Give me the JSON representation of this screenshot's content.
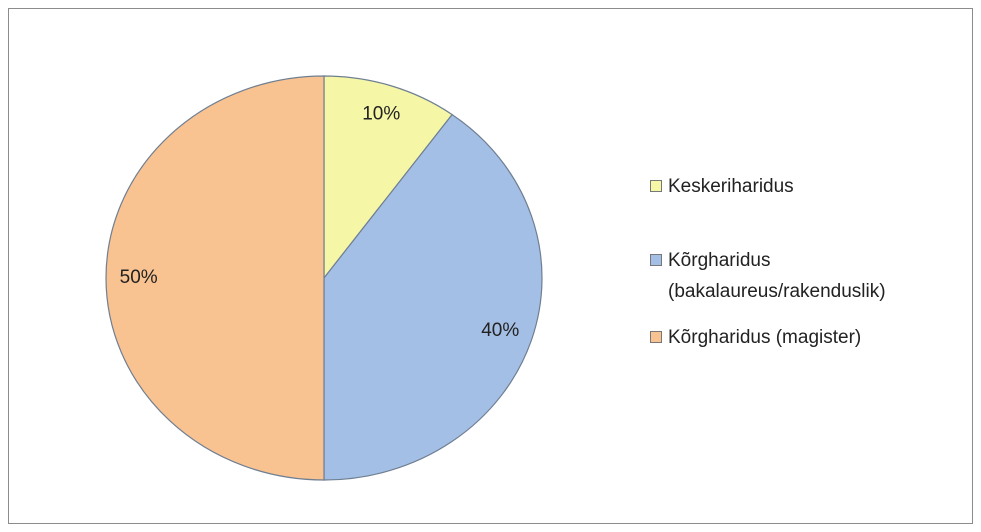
{
  "chart_data": {
    "type": "pie",
    "categories": [
      "Keskeriharidus",
      "Kõrgharidus (bakalaureus/rakenduslik)",
      "Kõrgharidus (magister)"
    ],
    "values": [
      10,
      40,
      50
    ],
    "value_labels": [
      "10%",
      "40%",
      "50%"
    ],
    "colors": [
      "#f5f6a6",
      "#a4bfe6",
      "#f9c291"
    ],
    "legend": "right"
  }
}
